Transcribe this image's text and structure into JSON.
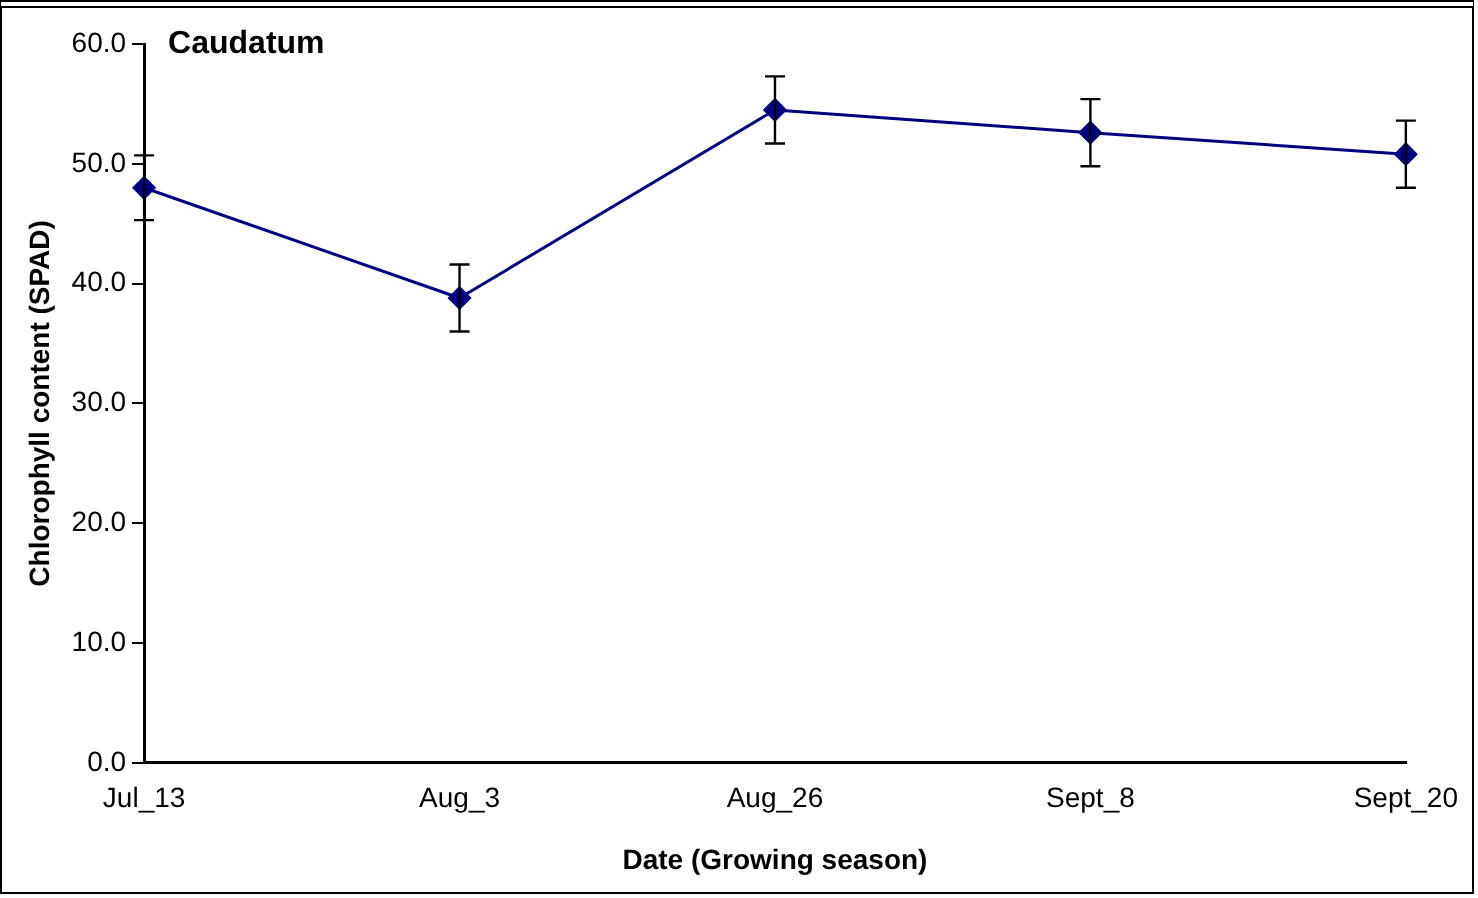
{
  "chart_data": {
    "type": "line",
    "title": "Caudatum",
    "xlabel": "Date (Growing season)",
    "ylabel": "Chlorophyll content (SPAD)",
    "categories": [
      "Jul_13",
      "Aug_3",
      "Aug_26",
      "Sept_8",
      "Sept_20"
    ],
    "series": [
      {
        "color": "#000080",
        "values": [
          48.0,
          38.8,
          54.5,
          52.6,
          50.8
        ],
        "errors": [
          2.7,
          2.8,
          2.8,
          2.8,
          2.8
        ]
      }
    ],
    "ylim": [
      0,
      60
    ],
    "yticks": [
      {
        "value": 0,
        "label": "0.0"
      },
      {
        "value": 10,
        "label": "10.0"
      },
      {
        "value": 20,
        "label": "20.0"
      },
      {
        "value": 30,
        "label": "30.0"
      },
      {
        "value": 40,
        "label": "40.0"
      },
      {
        "value": 50,
        "label": "50.0"
      },
      {
        "value": 60,
        "label": "60.0"
      }
    ],
    "grid": false,
    "legend": false,
    "marker": "diamond",
    "line_style": "solid"
  }
}
